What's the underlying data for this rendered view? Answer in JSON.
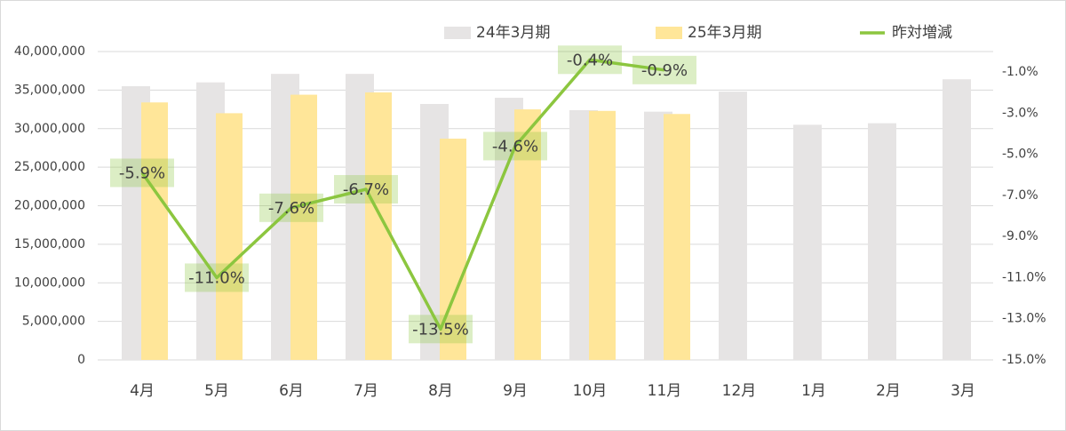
{
  "chart_data": {
    "type": "bar_line",
    "categories": [
      "4月",
      "5月",
      "6月",
      "7月",
      "8月",
      "9月",
      "10月",
      "11月",
      "12月",
      "1月",
      "2月",
      "3月"
    ],
    "series": [
      {
        "name": "24年3月期",
        "color": "#e6e4e4",
        "values": [
          35500000,
          36000000,
          37100000,
          37100000,
          33200000,
          34000000,
          32400000,
          32200000,
          34800000,
          30500000,
          30700000,
          36400000
        ]
      },
      {
        "name": "25年3月期",
        "color": "#ffe699",
        "values": [
          33400000,
          32000000,
          34400000,
          34700000,
          28700000,
          32500000,
          32300000,
          31900000,
          null,
          null,
          null,
          null
        ]
      },
      {
        "name": "昨対増減",
        "color": "#8cc63f",
        "axis": "y2",
        "values": [
          -5.9,
          -11.0,
          -7.6,
          -6.7,
          -13.5,
          -4.6,
          -0.4,
          -0.9,
          null,
          null,
          null,
          null
        ],
        "value_labels": [
          "-5.9%",
          "-11.0%",
          "-7.6%",
          "-6.7%",
          "-13.5%",
          "-4.6%",
          "-0.4%",
          "-0.9%",
          null,
          null,
          null,
          null
        ]
      }
    ],
    "ylim": [
      0,
      40000000
    ],
    "yticks": [
      0,
      {
        "value": 5000000,
        "label": "5,000,000"
      },
      {
        "value": 10000000,
        "label": "10,000,000"
      },
      {
        "value": 15000000,
        "label": "15,000,000"
      },
      {
        "value": 20000000,
        "label": "20,000,000"
      },
      {
        "value": 25000000,
        "label": "25,000,000"
      },
      {
        "value": 30000000,
        "label": "30,000,000"
      },
      {
        "value": 35000000,
        "label": "35,000,000"
      },
      {
        "value": 40000000,
        "label": "40,000,000"
      }
    ],
    "y2lim": [
      -15,
      0
    ],
    "y2ticks": [
      {
        "value": -15,
        "label": "-15.0%"
      },
      {
        "value": -13,
        "label": "-13.0%"
      },
      {
        "value": -11,
        "label": "-11.0%"
      },
      {
        "value": -9,
        "label": "-9.0%"
      },
      {
        "value": -7,
        "label": "-7.0%"
      },
      {
        "value": -5,
        "label": "-5.0%"
      },
      {
        "value": -3,
        "label": "-3.0%"
      },
      {
        "value": -1,
        "label": "-1.0%"
      }
    ],
    "grid": true
  }
}
